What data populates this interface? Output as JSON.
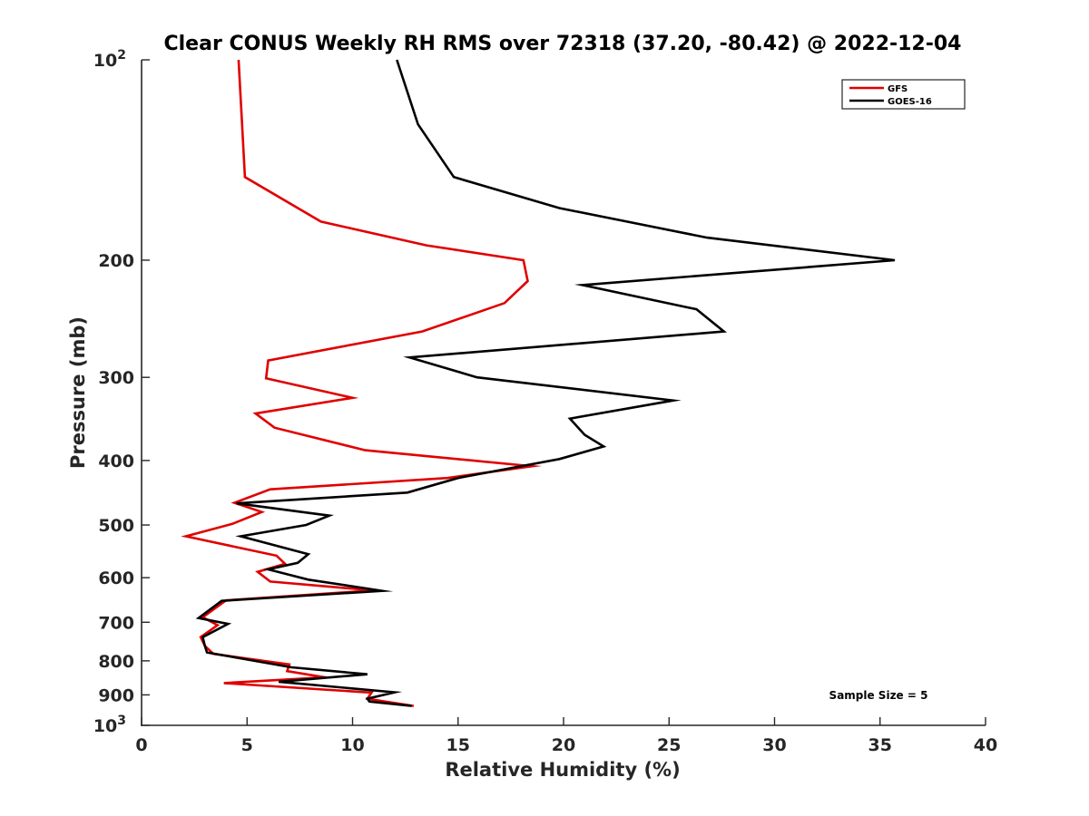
{
  "chart_data": {
    "type": "line",
    "title": "Clear CONUS Weekly RH RMS over 72318 (37.20, -80.42) @ 2022-12-04",
    "xlabel": "Relative Humidity (%)",
    "ylabel": "Pressure (mb)",
    "xlim": [
      0,
      40
    ],
    "ylim": [
      100,
      1000
    ],
    "y_scale": "log",
    "y_reversed": true,
    "grid": false,
    "legend_position": "top-right",
    "x_ticks": [
      0,
      5,
      10,
      15,
      20,
      25,
      30,
      35,
      40
    ],
    "x_tick_labels": [
      "0",
      "5",
      "10",
      "15",
      "20",
      "25",
      "30",
      "35",
      "40"
    ],
    "y_ticks": [
      100,
      200,
      300,
      400,
      500,
      600,
      700,
      800,
      900,
      1000
    ],
    "y_tick_labels": [
      {
        "base": "10",
        "exp": "2"
      },
      {
        "base": "200",
        "exp": ""
      },
      {
        "base": "300",
        "exp": ""
      },
      {
        "base": "400",
        "exp": ""
      },
      {
        "base": "500",
        "exp": ""
      },
      {
        "base": "600",
        "exp": ""
      },
      {
        "base": "700",
        "exp": ""
      },
      {
        "base": "800",
        "exp": ""
      },
      {
        "base": "900",
        "exp": ""
      },
      {
        "base": "10",
        "exp": "3"
      }
    ],
    "series": [
      {
        "name": "GFS",
        "color": "#e00000",
        "points": [
          [
            4.6,
            100
          ],
          [
            4.9,
            150
          ],
          [
            8.5,
            175
          ],
          [
            13.5,
            190
          ],
          [
            18.1,
            200
          ],
          [
            18.3,
            215
          ],
          [
            17.2,
            232
          ],
          [
            13.3,
            256
          ],
          [
            6.0,
            283
          ],
          [
            5.9,
            301
          ],
          [
            10.0,
            322
          ],
          [
            5.4,
            340
          ],
          [
            6.3,
            357
          ],
          [
            10.6,
            386
          ],
          [
            18.5,
            408
          ],
          [
            14.5,
            425
          ],
          [
            6.1,
            442
          ],
          [
            4.4,
            463
          ],
          [
            5.7,
            478
          ],
          [
            4.3,
            498
          ],
          [
            2.1,
            520
          ],
          [
            6.4,
            556
          ],
          [
            6.8,
            572
          ],
          [
            5.5,
            588
          ],
          [
            6.1,
            608
          ],
          [
            11.0,
            627
          ],
          [
            4.0,
            649
          ],
          [
            2.9,
            688
          ],
          [
            3.6,
            707
          ],
          [
            2.8,
            737
          ],
          [
            3.0,
            760
          ],
          [
            3.4,
            781
          ],
          [
            7.0,
            810
          ],
          [
            6.9,
            829
          ],
          [
            8.7,
            847
          ],
          [
            3.9,
            864
          ],
          [
            10.9,
            893
          ],
          [
            10.7,
            912
          ],
          [
            12.9,
            935
          ]
        ]
      },
      {
        "name": "GOES-16",
        "color": "#000000",
        "points": [
          [
            12.1,
            100
          ],
          [
            13.1,
            125
          ],
          [
            14.8,
            150
          ],
          [
            19.8,
            167
          ],
          [
            26.8,
            185
          ],
          [
            35.7,
            200
          ],
          [
            20.9,
            218
          ],
          [
            26.3,
            237
          ],
          [
            27.6,
            256
          ],
          [
            12.7,
            280
          ],
          [
            15.9,
            300
          ],
          [
            25.2,
            325
          ],
          [
            20.3,
            346
          ],
          [
            21.0,
            366
          ],
          [
            21.9,
            381
          ],
          [
            19.8,
            398
          ],
          [
            15.0,
            425
          ],
          [
            12.6,
            447
          ],
          [
            4.5,
            464
          ],
          [
            8.9,
            484
          ],
          [
            7.8,
            500
          ],
          [
            4.7,
            520
          ],
          [
            7.9,
            553
          ],
          [
            7.4,
            570
          ],
          [
            6.0,
            583
          ],
          [
            7.9,
            604
          ],
          [
            11.4,
            628
          ],
          [
            3.8,
            650
          ],
          [
            2.7,
            690
          ],
          [
            4.1,
            704
          ],
          [
            2.9,
            737
          ],
          [
            3.0,
            760
          ],
          [
            3.1,
            777
          ],
          [
            7.1,
            818
          ],
          [
            10.7,
            838
          ],
          [
            6.5,
            860
          ],
          [
            12.0,
            892
          ],
          [
            10.7,
            912
          ],
          [
            10.8,
            921
          ],
          [
            12.8,
            935
          ]
        ]
      }
    ],
    "annotations": [
      "Sample Size = 5"
    ]
  }
}
